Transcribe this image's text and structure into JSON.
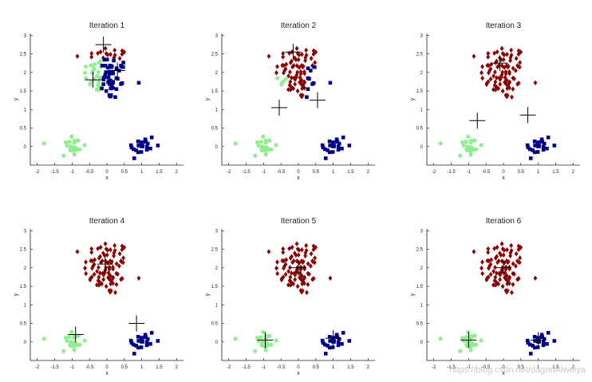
{
  "watermark": "https://blog.csdn.net/dagouAIweiya",
  "colors": {
    "cluster_red": "#8B0000",
    "cluster_blue": "#00008B",
    "cluster_green": "#90EE90",
    "centroid": "#000000"
  },
  "chart_data": [
    {
      "type": "scatter",
      "title": "Iteration 1",
      "xlabel": "x",
      "ylabel": "y",
      "xlim": [
        -2.2,
        2.2
      ],
      "ylim": [
        -0.5,
        3.05
      ],
      "xticks": [
        "-2",
        "-1.5",
        "-1",
        "-0.5",
        "0",
        "0.5",
        "1",
        "1.5",
        "2"
      ],
      "yticks": [
        "0",
        "0.5",
        "1",
        "1.5",
        "2",
        "2.5",
        "3"
      ],
      "clusters": {
        "top_center": [
          0.0,
          2.0
        ],
        "top_spread": [
          0.6,
          0.45
        ],
        "bottom_left": [
          -1.0,
          0.0
        ],
        "bottom_right": [
          1.0,
          0.0
        ],
        "bottom_spread": [
          0.2,
          0.18
        ]
      },
      "labels": {
        "top": "mixed",
        "bottom_left": "green",
        "bottom_right": "blue"
      },
      "centroids": [
        [
          -0.1,
          2.75
        ],
        [
          -0.4,
          1.8
        ],
        [
          0.3,
          2.05
        ]
      ]
    },
    {
      "type": "scatter",
      "title": "Iteration 2",
      "xlabel": "x",
      "ylabel": "y",
      "xlim": [
        -2.2,
        2.2
      ],
      "ylim": [
        -0.5,
        3.05
      ],
      "xticks": [
        "-2",
        "-1.5",
        "-1",
        "-0.5",
        "0",
        "0.5",
        "1",
        "1.5",
        "2"
      ],
      "yticks": [
        "0",
        "0.5",
        "1",
        "1.5",
        "2",
        "2.5",
        "3"
      ],
      "clusters": {
        "top_center": [
          0.0,
          2.0
        ],
        "top_spread": [
          0.6,
          0.45
        ],
        "bottom_left": [
          -1.0,
          0.0
        ],
        "bottom_right": [
          1.0,
          0.0
        ],
        "bottom_spread": [
          0.2,
          0.18
        ]
      },
      "labels": {
        "top": "mixed2",
        "bottom_left": "green",
        "bottom_right": "blue"
      },
      "centroids": [
        [
          -0.15,
          2.55
        ],
        [
          -0.55,
          1.05
        ],
        [
          0.55,
          1.25
        ]
      ]
    },
    {
      "type": "scatter",
      "title": "Iteration 3",
      "xlabel": "x",
      "ylabel": "y",
      "xlim": [
        -2.2,
        2.2
      ],
      "ylim": [
        -0.5,
        3.05
      ],
      "xticks": [
        "-2",
        "-1.5",
        "-1",
        "-0.5",
        "0",
        "0.5",
        "1",
        "1.5",
        "2"
      ],
      "yticks": [
        "0",
        "0.5",
        "1",
        "1.5",
        "2",
        "2.5",
        "3"
      ],
      "clusters": {
        "top_center": [
          0.0,
          2.0
        ],
        "top_spread": [
          0.6,
          0.45
        ],
        "bottom_left": [
          -1.0,
          0.0
        ],
        "bottom_right": [
          1.0,
          0.0
        ],
        "bottom_spread": [
          0.2,
          0.18
        ]
      },
      "labels": {
        "top": "mostly_red",
        "bottom_left": "green",
        "bottom_right": "blue"
      },
      "centroids": [
        [
          -0.1,
          2.25
        ],
        [
          -0.75,
          0.7
        ],
        [
          0.7,
          0.85
        ]
      ]
    },
    {
      "type": "scatter",
      "title": "Iteration 4",
      "xlabel": "x",
      "ylabel": "y",
      "xlim": [
        -2.2,
        2.2
      ],
      "ylim": [
        -0.5,
        3.05
      ],
      "xticks": [
        "-2",
        "-1.5",
        "-1",
        "-0.5",
        "0",
        "0.5",
        "1",
        "1.5",
        "2"
      ],
      "yticks": [
        "0",
        "0.5",
        "1",
        "1.5",
        "2",
        "2.5",
        "3"
      ],
      "clusters": {
        "top_center": [
          0.0,
          2.0
        ],
        "top_spread": [
          0.6,
          0.45
        ],
        "bottom_left": [
          -1.0,
          0.0
        ],
        "bottom_right": [
          1.0,
          0.0
        ],
        "bottom_spread": [
          0.2,
          0.18
        ]
      },
      "labels": {
        "top": "red",
        "bottom_left": "green",
        "bottom_right": "blue"
      },
      "centroids": [
        [
          -0.05,
          2.1
        ],
        [
          -0.9,
          0.2
        ],
        [
          0.85,
          0.5
        ]
      ]
    },
    {
      "type": "scatter",
      "title": "Iteration 5",
      "xlabel": "x",
      "ylabel": "y",
      "xlim": [
        -2.2,
        2.2
      ],
      "ylim": [
        -0.5,
        3.05
      ],
      "xticks": [
        "-2",
        "-1.5",
        "-1",
        "-0.5",
        "0",
        "0.5",
        "1",
        "1.5",
        "2"
      ],
      "yticks": [
        "0",
        "0.5",
        "1",
        "1.5",
        "2",
        "2.5",
        "3"
      ],
      "clusters": {
        "top_center": [
          0.0,
          2.0
        ],
        "top_spread": [
          0.6,
          0.45
        ],
        "bottom_left": [
          -1.0,
          0.0
        ],
        "bottom_right": [
          1.0,
          0.0
        ],
        "bottom_spread": [
          0.2,
          0.18
        ]
      },
      "labels": {
        "top": "red",
        "bottom_left": "green",
        "bottom_right": "blue"
      },
      "centroids": [
        [
          0.0,
          2.0
        ],
        [
          -0.95,
          0.05
        ],
        [
          1.0,
          0.1
        ]
      ]
    },
    {
      "type": "scatter",
      "title": "Iteration 6",
      "xlabel": "x",
      "ylabel": "y",
      "xlim": [
        -2.2,
        2.2
      ],
      "ylim": [
        -0.5,
        3.05
      ],
      "xticks": [
        "-2",
        "-1.5",
        "-1",
        "-0.5",
        "0",
        "0.5",
        "1",
        "1.5",
        "2"
      ],
      "yticks": [
        "0",
        "0.5",
        "1",
        "1.5",
        "2",
        "2.5",
        "3"
      ],
      "clusters": {
        "top_center": [
          0.0,
          2.0
        ],
        "top_spread": [
          0.6,
          0.45
        ],
        "bottom_left": [
          -1.0,
          0.0
        ],
        "bottom_right": [
          1.0,
          0.0
        ],
        "bottom_spread": [
          0.2,
          0.18
        ]
      },
      "labels": {
        "top": "red",
        "bottom_left": "green",
        "bottom_right": "blue"
      },
      "centroids": [
        [
          0.0,
          2.0
        ],
        [
          -1.0,
          0.05
        ],
        [
          1.0,
          0.05
        ]
      ]
    }
  ]
}
